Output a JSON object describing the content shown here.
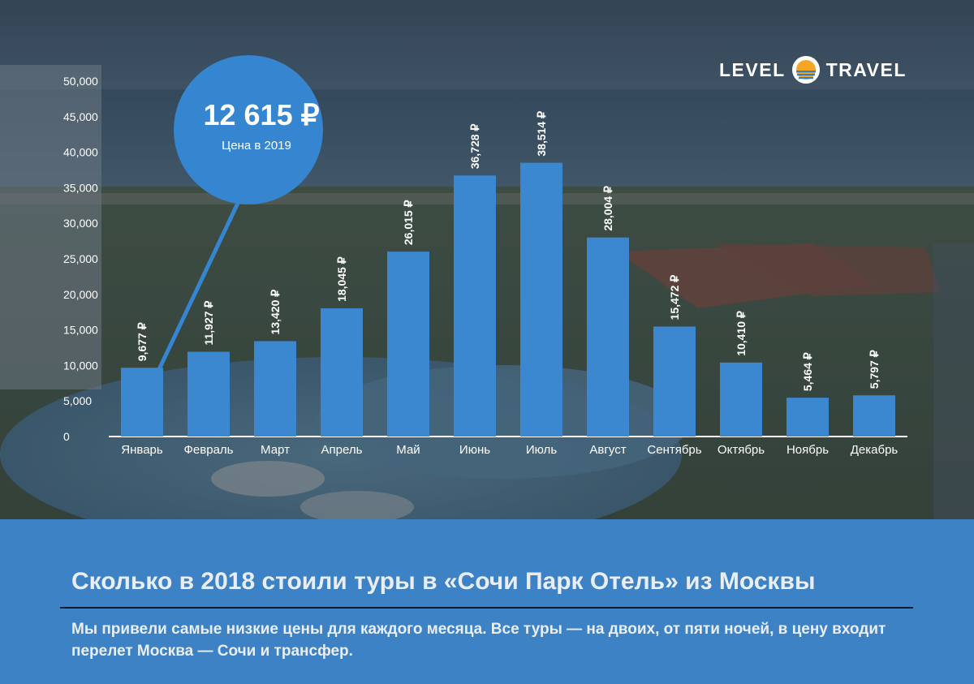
{
  "brand": {
    "left_word": "LEVEL",
    "right_word": "TRAVEL",
    "logo_icon": "sun-over-sea-icon"
  },
  "callout": {
    "price": "12 615 ₽",
    "caption": "Цена в 2019"
  },
  "colors": {
    "bar": "#3b87d0",
    "bubble": "#3685d0",
    "panel": "#3e82c6"
  },
  "chart_data": {
    "type": "bar",
    "categories": [
      "Январь",
      "Февраль",
      "Март",
      "Апрель",
      "Май",
      "Июнь",
      "Июль",
      "Август",
      "Сентябрь",
      "Октябрь",
      "Ноябрь",
      "Декабрь"
    ],
    "values": [
      9677,
      11927,
      13420,
      18045,
      26015,
      36728,
      38514,
      28004,
      15472,
      10410,
      5464,
      5797
    ],
    "value_labels": [
      "9,677 ₽",
      "11,927 ₽",
      "13,420 ₽",
      "18,045 ₽",
      "26,015 ₽",
      "36,728 ₽",
      "38,514 ₽",
      "28,004 ₽",
      "15,472 ₽",
      "10,410 ₽",
      "5,464 ₽",
      "5,797 ₽"
    ],
    "y_ticks": [
      "0",
      "5,000",
      "10,000",
      "15,000",
      "20,000",
      "25,000",
      "30,000",
      "35,000",
      "40,000",
      "45,000",
      "50,000"
    ],
    "ylim": [
      0,
      50000
    ],
    "grid": false,
    "legend": "none"
  },
  "footer": {
    "title": "Сколько в 2018 стоили туры в «Сочи Парк Отель» из Москвы",
    "subtitle": "Мы привели самые низкие цены для каждого месяца. Все туры — на двоих, от пяти ночей, в цену входит перелет Москва — Сочи и трансфер."
  }
}
